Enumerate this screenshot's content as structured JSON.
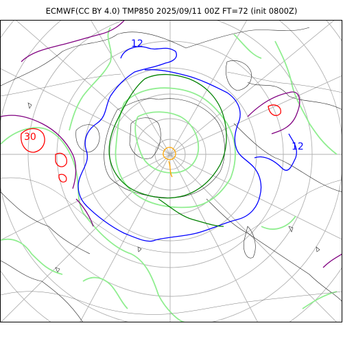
{
  "title": "ECMWF(CC BY 4.0) TMP850 2025/09/11 00Z FT=72 (init 0800Z)",
  "contour_labels": [
    {
      "text": "30",
      "color": "#ff0000"
    },
    {
      "text": "12",
      "color": "#0000ff"
    },
    {
      "text": "12",
      "color": "#0000ff"
    }
  ],
  "colors": {
    "graticule": "#b0b0b0",
    "coastline": "#000000",
    "warm_isotherm": "#ff0000",
    "hot_isotherm": "#800080",
    "isotherm_12": "#0000ff",
    "isotherm_0": "#008000",
    "light_isotherm": "#90ee90",
    "cold_isotherm": "#ffa500"
  }
}
